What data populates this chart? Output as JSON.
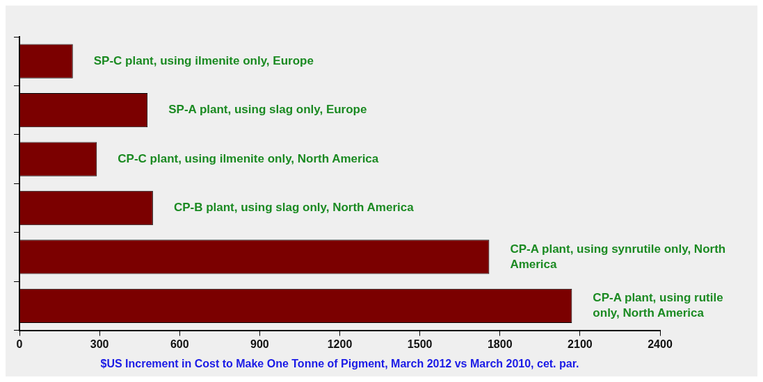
{
  "chart_data": {
    "type": "bar",
    "orientation": "horizontal",
    "xlabel": "$US Increment in Cost to Make One Tonne of Pigment, March 2012 vs March 2010, cet. par.",
    "categories": [
      "SP-C plant, using ilmenite only, Europe",
      "SP-A plant, using slag only, Europe",
      "CP-C plant, using ilmenite only, North America",
      "CP-B plant, using slag only, North America",
      "CP-A plant, using synrutile only, North America",
      "CP-A plant, using rutile only, North America"
    ],
    "values": [
      200,
      480,
      290,
      500,
      1760,
      2070
    ],
    "color": "#7b0000",
    "xlim": [
      0,
      2400
    ],
    "xticks": [
      0,
      300,
      600,
      900,
      1200,
      1500,
      1800,
      2100,
      2400
    ],
    "grid": false,
    "legend": false
  }
}
